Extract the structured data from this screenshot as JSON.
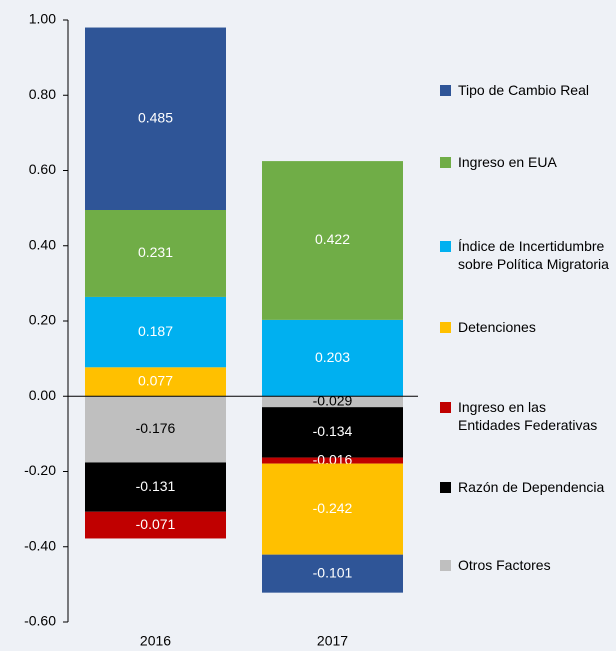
{
  "chart_data": {
    "type": "stacked-bar",
    "categories": [
      "2016",
      "2017"
    ],
    "series": [
      {
        "name": "Tipo de Cambio Real",
        "color": "#2f5597",
        "values": [
          0.485,
          -0.101
        ]
      },
      {
        "name": "Ingreso en EUA",
        "color": "#70ad47",
        "values": [
          0.231,
          0.422
        ]
      },
      {
        "name": "Índice de Incertidumbre sobre Política Migratoria",
        "color": "#00b0f0",
        "values": [
          0.187,
          0.203
        ]
      },
      {
        "name": "Detenciones",
        "color": "#ffc000",
        "values": [
          0.077,
          -0.242
        ]
      },
      {
        "name": "Ingreso en las Entidades Federativas",
        "color": "#c00000",
        "values": [
          -0.071,
          -0.016
        ]
      },
      {
        "name": "Razón de Dependencia",
        "color": "#000000",
        "values": [
          -0.131,
          -0.134
        ]
      },
      {
        "name": "Otros Factores",
        "color": "#bfbfbf",
        "values": [
          -0.176,
          -0.029
        ]
      }
    ],
    "ylim": [
      -0.6,
      1.0
    ],
    "yticks": [
      {
        "value": -0.6,
        "label": "-0.60"
      },
      {
        "value": -0.4,
        "label": "-0.40"
      },
      {
        "value": -0.2,
        "label": "-0.20"
      },
      {
        "value": 0,
        "label": "0.00"
      },
      {
        "value": 0.2,
        "label": "0.20"
      },
      {
        "value": 0.4,
        "label": "0.40"
      },
      {
        "value": 0.6,
        "label": "0.60"
      },
      {
        "value": 0.8,
        "label": "0.80"
      },
      {
        "value": 1.0,
        "label": "1.00"
      }
    ]
  }
}
